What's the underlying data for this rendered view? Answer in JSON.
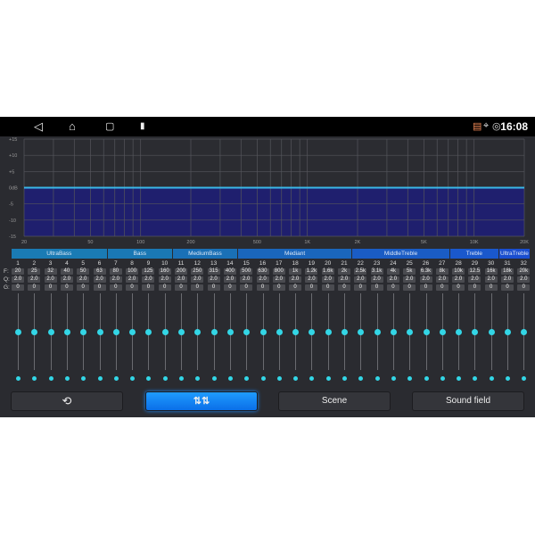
{
  "status_bar": {
    "time": "16:08",
    "nav_icons": [
      "back-icon",
      "home-icon",
      "recents-icon",
      "usb-icon"
    ],
    "status_icons": [
      "cast-icon",
      "location-icon",
      "hotspot-icon"
    ]
  },
  "graph": {
    "y_labels": [
      "+15",
      "+10",
      "+5",
      "0dB",
      "-5",
      "-10",
      "-15"
    ],
    "x_labels": [
      "20",
      "50",
      "100",
      "200",
      "500",
      "1K",
      "2K",
      "5K",
      "10K",
      "20K"
    ],
    "level_db": 0,
    "line_color": "#3ab8e8",
    "fill_color": "#1f1f6e"
  },
  "bands": [
    {
      "label": "UltraBass",
      "from": 1,
      "to": 6,
      "color": "#1a7bb4"
    },
    {
      "label": "Bass",
      "from": 7,
      "to": 10,
      "color": "#1a78b4"
    },
    {
      "label": "MediumBass",
      "from": 11,
      "to": 14,
      "color": "#1a70b6"
    },
    {
      "label": "Mediant",
      "from": 15,
      "to": 21,
      "color": "#1a66bc"
    },
    {
      "label": "MiddleTreble",
      "from": 22,
      "to": 27,
      "color": "#1a5cc4"
    },
    {
      "label": "Treble",
      "from": 28,
      "to": 30,
      "color": "#1a58cc"
    },
    {
      "label": "UltraTreble",
      "from": 31,
      "to": 32,
      "color": "#1a4ed0"
    }
  ],
  "row_labels": {
    "f": "F:",
    "q": "Q:",
    "g": "G:"
  },
  "channels": {
    "numbers": [
      "1",
      "2",
      "3",
      "4",
      "5",
      "6",
      "7",
      "8",
      "9",
      "10",
      "11",
      "12",
      "13",
      "14",
      "15",
      "16",
      "17",
      "18",
      "19",
      "20",
      "21",
      "22",
      "23",
      "24",
      "25",
      "26",
      "27",
      "28",
      "29",
      "30",
      "31",
      "32"
    ],
    "freq": [
      "20",
      "25",
      "32",
      "40",
      "50",
      "63",
      "80",
      "100",
      "125",
      "160",
      "200",
      "250",
      "315",
      "400",
      "500",
      "630",
      "800",
      "1k",
      "1.2k",
      "1.6k",
      "2k",
      "2.5k",
      "3.1k",
      "4k",
      "5k",
      "6.3k",
      "8k",
      "10k",
      "12.5",
      "16k",
      "18k",
      "20k"
    ],
    "q": [
      "2.0",
      "2.0",
      "2.0",
      "2.0",
      "2.0",
      "2.0",
      "2.0",
      "2.0",
      "2.0",
      "2.0",
      "2.0",
      "2.0",
      "2.0",
      "2.0",
      "2.0",
      "2.0",
      "2.0",
      "2.0",
      "2.0",
      "2.0",
      "2.0",
      "2.0",
      "2.0",
      "2.0",
      "2.0",
      "2.0",
      "2.0",
      "2.0",
      "2.0",
      "2.0",
      "2.0",
      "2.0"
    ],
    "gain": [
      "0",
      "0",
      "0",
      "0",
      "0",
      "0",
      "0",
      "0",
      "0",
      "0",
      "0",
      "0",
      "0",
      "0",
      "0",
      "0",
      "0",
      "0",
      "0",
      "0",
      "0",
      "0",
      "0",
      "0",
      "0",
      "0",
      "0",
      "0",
      "0",
      "0",
      "0",
      "0"
    ]
  },
  "buttons": {
    "reset_icon": "reset-icon",
    "eq_icon": "equalizer-icon",
    "scene": "Scene",
    "sound_field": "Sound field"
  }
}
